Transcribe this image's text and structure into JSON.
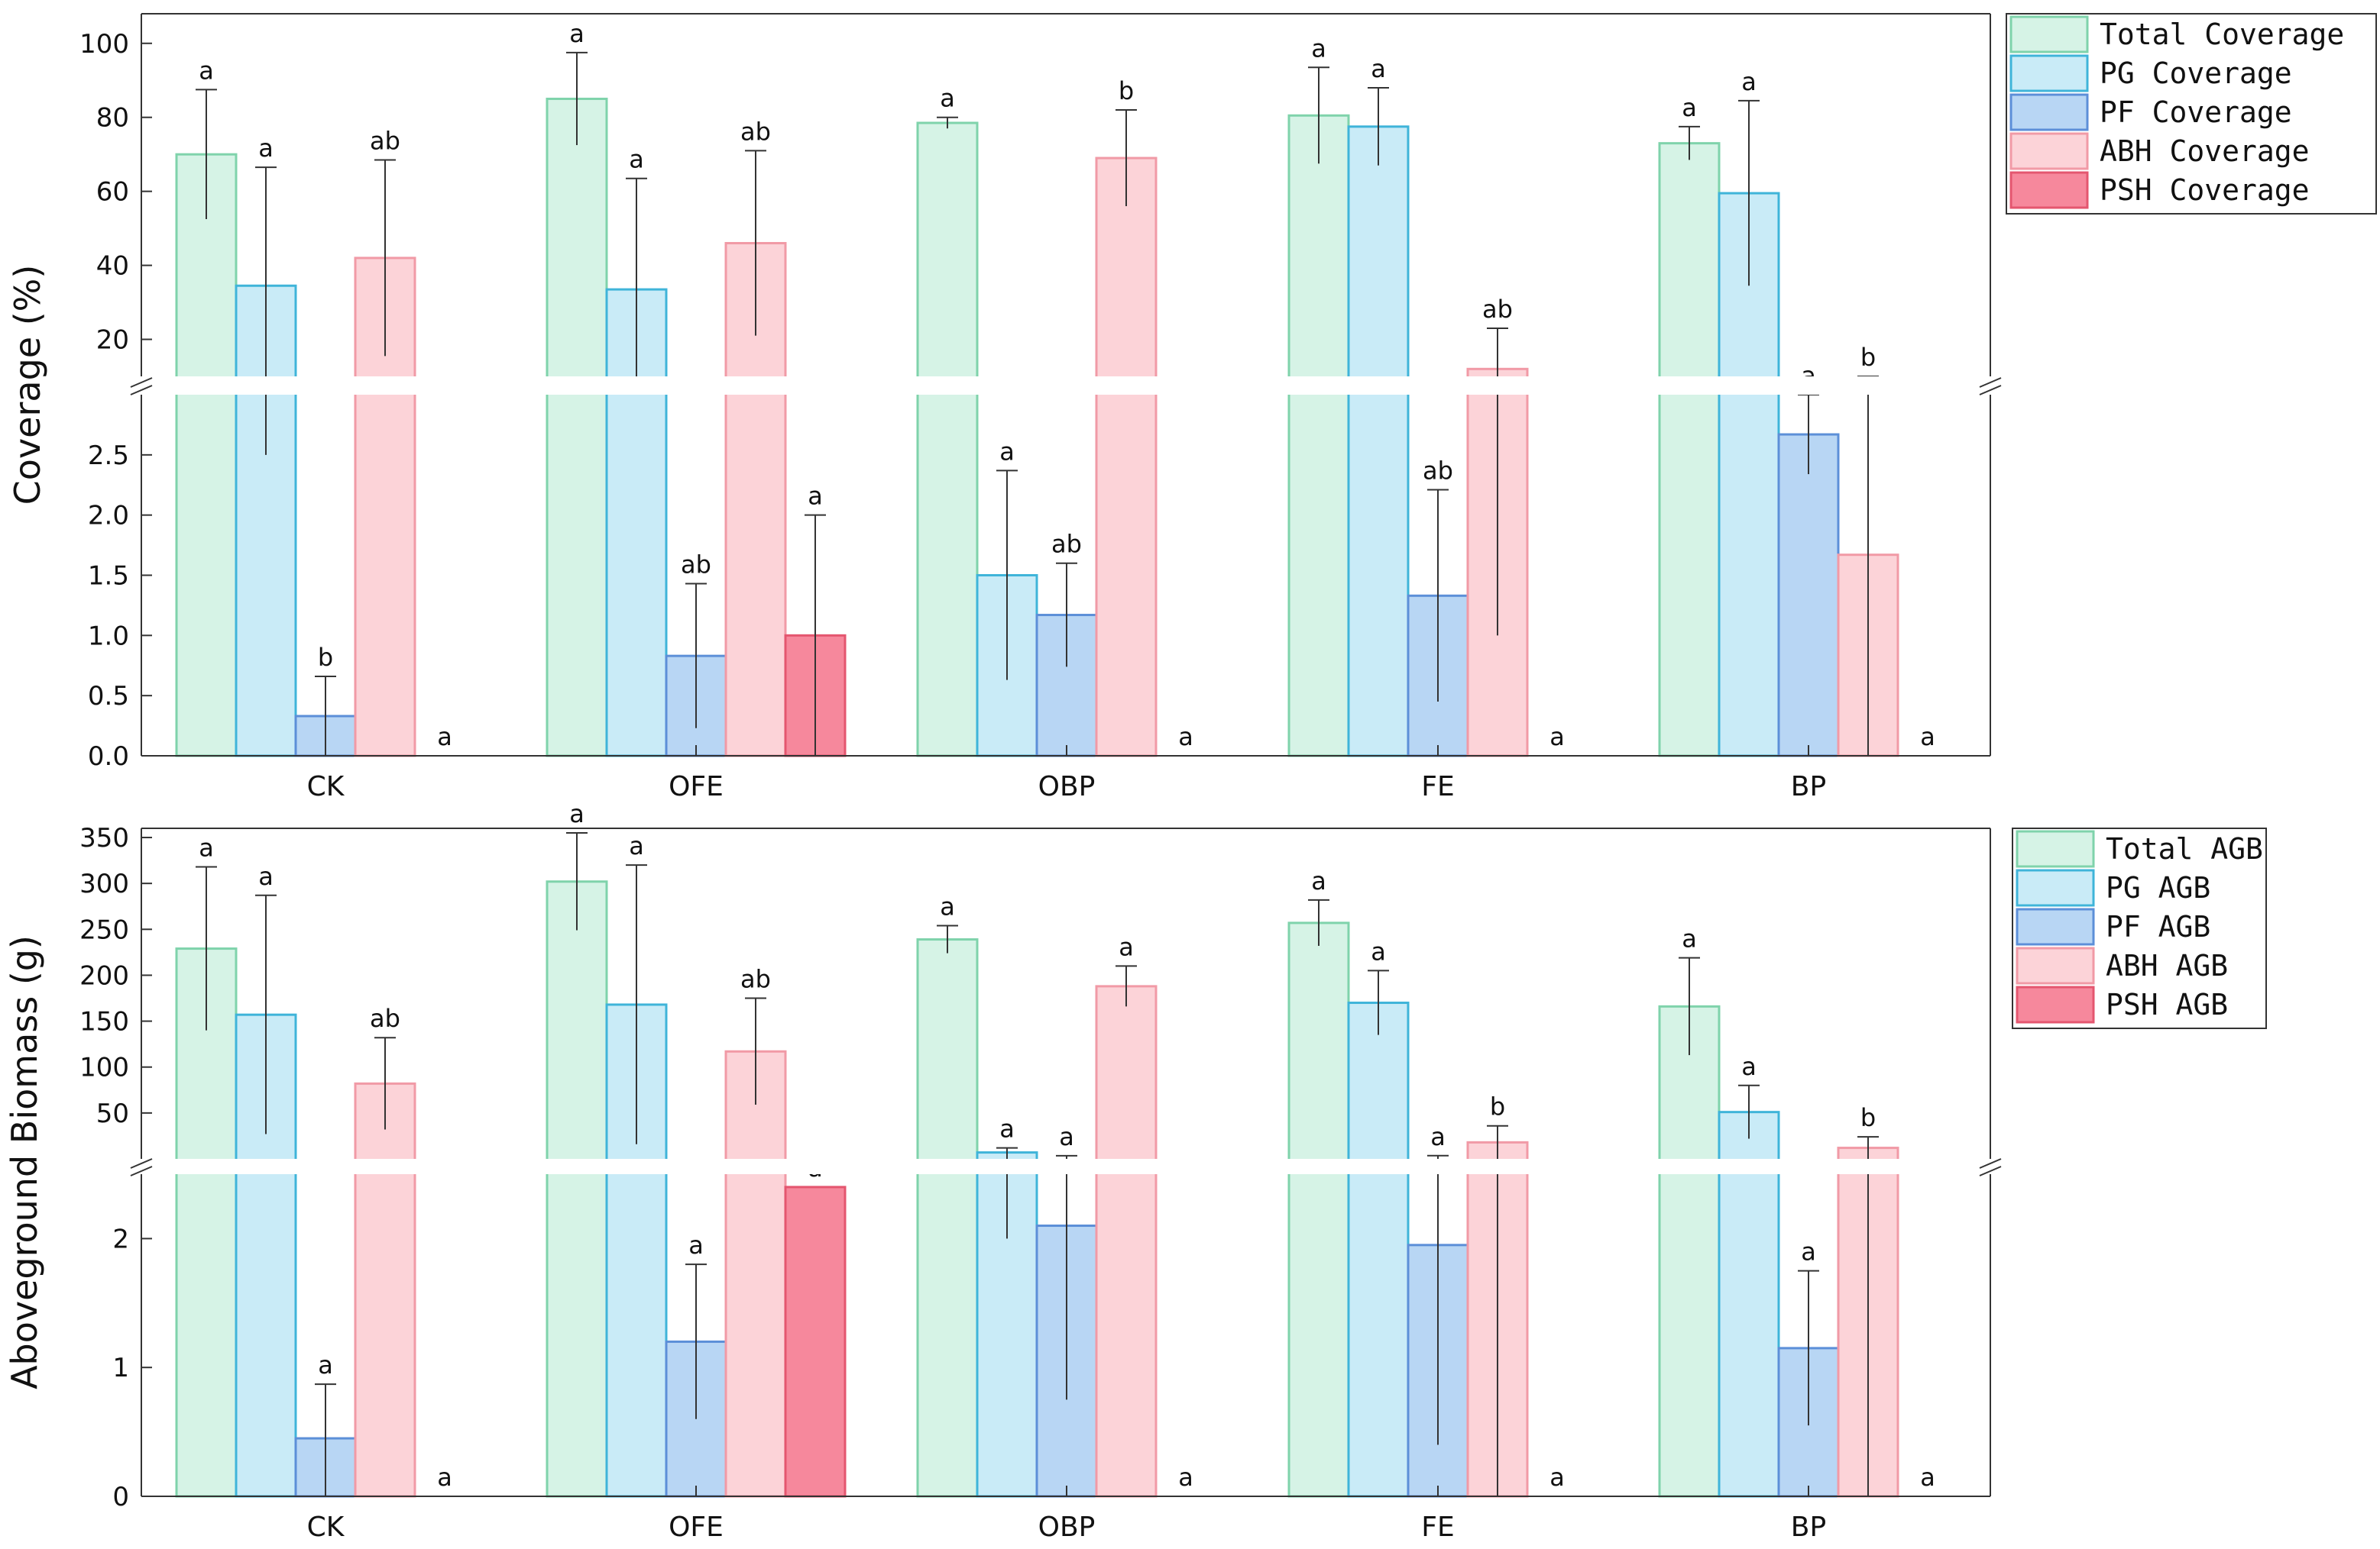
{
  "series_styles": [
    {
      "fill": "#d6f3e6",
      "stroke": "#7fd3ab"
    },
    {
      "fill": "#c9ebf7",
      "stroke": "#3fb4d9"
    },
    {
      "fill": "#b8d6f4",
      "stroke": "#5c8fd8"
    },
    {
      "fill": "#fcd3d8",
      "stroke": "#f19aa6"
    },
    {
      "fill": "#f6889c",
      "stroke": "#e4566f"
    }
  ],
  "chart_data": [
    {
      "type": "bar",
      "title": "",
      "xlabel": "",
      "ylabel": "Coverage (%)",
      "categories": [
        "CK",
        "OFE",
        "OBP",
        "FE",
        "BP"
      ],
      "broken_axis": {
        "lower_range": [
          0,
          3.0
        ],
        "upper_range": [
          10,
          108
        ],
        "lower_ticks": [
          "0.0",
          "0.5",
          "1.0",
          "1.5",
          "2.0",
          "2.5"
        ],
        "upper_ticks": [
          "20",
          "40",
          "60",
          "80",
          "100"
        ]
      },
      "legend_position": "top-right outside",
      "series": [
        {
          "name": "Total Coverage",
          "values": [
            70,
            85,
            78.5,
            80.5,
            73
          ],
          "errors": [
            17.5,
            12.5,
            1.5,
            13,
            4.5
          ],
          "labels": [
            "a",
            "a",
            "a",
            "a",
            "a"
          ]
        },
        {
          "name": "PG Coverage",
          "values": [
            34.5,
            33.5,
            1.5,
            77.5,
            59.5
          ],
          "errors": [
            32,
            30,
            0.87,
            10.5,
            25
          ],
          "labels": [
            "a",
            "a",
            "a",
            "a",
            "a"
          ]
        },
        {
          "name": "PF Coverage",
          "values": [
            0.33,
            0.83,
            1.17,
            1.33,
            2.67
          ],
          "errors": [
            0.33,
            0.6,
            0.43,
            0.88,
            0.33
          ],
          "labels": [
            "b",
            "ab",
            "ab",
            "ab",
            "a"
          ]
        },
        {
          "name": "ABH Coverage",
          "values": [
            42,
            46,
            69,
            12,
            1.67
          ],
          "errors": [
            26.5,
            25,
            13,
            11,
            1.67
          ],
          "labels": [
            "ab",
            "ab",
            "b",
            "ab",
            "b"
          ]
        },
        {
          "name": "PSH Coverage",
          "values": [
            0,
            1.0,
            0,
            0,
            0
          ],
          "errors": [
            0,
            1.0,
            0,
            0,
            0
          ],
          "labels": [
            "a",
            "a",
            "a",
            "a",
            "a"
          ]
        }
      ]
    },
    {
      "type": "bar",
      "title": "",
      "xlabel": "",
      "ylabel": "Aboveground Biomass (g)",
      "categories": [
        "CK",
        "OFE",
        "OBP",
        "FE",
        "BP"
      ],
      "broken_axis": {
        "lower_range": [
          0,
          2.5
        ],
        "upper_range": [
          0,
          360
        ],
        "lower_ticks": [
          "0",
          "1",
          "2"
        ],
        "upper_ticks": [
          "50",
          "100",
          "150",
          "200",
          "250",
          "300",
          "350"
        ]
      },
      "legend_position": "top-right outside",
      "series": [
        {
          "name": "Total AGB",
          "values": [
            229,
            302,
            239,
            257,
            166
          ],
          "errors": [
            89,
            53,
            15,
            25,
            53
          ],
          "labels": [
            "a",
            "a",
            "a",
            "a",
            "a"
          ]
        },
        {
          "name": "PG AGB",
          "values": [
            157,
            168,
            7,
            170,
            51
          ],
          "errors": [
            130,
            152,
            5,
            35,
            29
          ],
          "labels": [
            "a",
            "a",
            "a",
            "a",
            "a"
          ]
        },
        {
          "name": "PF AGB",
          "values": [
            0.45,
            1.2,
            2.1,
            1.95,
            1.15
          ],
          "errors": [
            0.42,
            0.6,
            1.35,
            1.55,
            0.6
          ],
          "labels": [
            "a",
            "a",
            "a",
            "a",
            "a"
          ]
        },
        {
          "name": "ABH AGB",
          "values": [
            82,
            117,
            188,
            18,
            12
          ],
          "errors": [
            50,
            58,
            22,
            18,
            12
          ],
          "labels": [
            "ab",
            "ab",
            "a",
            "b",
            "b"
          ]
        },
        {
          "name": "PSH AGB",
          "values": [
            0,
            2.4,
            0,
            0,
            0
          ],
          "errors": [
            0,
            0,
            0,
            0,
            0
          ],
          "labels": [
            "a",
            "a",
            "a",
            "a",
            "a"
          ]
        }
      ]
    }
  ]
}
